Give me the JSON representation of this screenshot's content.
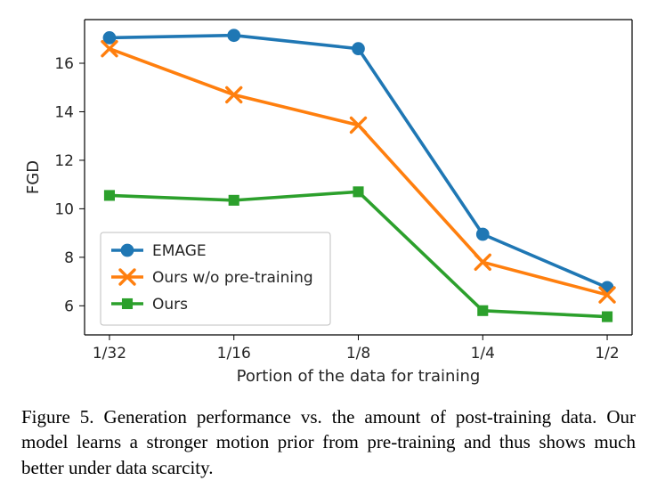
{
  "chart": {
    "type": "line",
    "xlabel": "Portion of the data for training",
    "ylabel": "FGD",
    "label_fontsize": 18,
    "tick_fontsize": 17,
    "x_categories": [
      "1/32",
      "1/16",
      "1/8",
      "1/4",
      "1/2"
    ],
    "x_positions": [
      0,
      1,
      2,
      3,
      4
    ],
    "xlim": [
      -0.2,
      4.2
    ],
    "ylim": [
      4.8,
      17.8
    ],
    "yticks": [
      6,
      8,
      10,
      12,
      14,
      16
    ],
    "background_color": "#ffffff",
    "grid_color": "#ffffff",
    "axis_line_color": "#000000",
    "tick_color": "#000000",
    "series": [
      {
        "name": "EMAGE",
        "label": "EMAGE",
        "color": "#1f77b4",
        "marker": "circle",
        "marker_size": 11,
        "line_width": 3.6,
        "y": [
          17.05,
          17.15,
          16.6,
          8.95,
          6.75
        ]
      },
      {
        "name": "Ours w/o pre-training",
        "label": "Ours w/o pre-training",
        "color": "#ff7f0e",
        "marker": "x",
        "marker_size": 12,
        "line_width": 3.6,
        "y": [
          16.6,
          14.7,
          13.45,
          7.8,
          6.45
        ]
      },
      {
        "name": "Ours",
        "label": "Ours",
        "color": "#2ca02c",
        "marker": "square",
        "marker_size": 10,
        "line_width": 3.6,
        "y": [
          10.55,
          10.35,
          10.7,
          5.8,
          5.55
        ]
      }
    ],
    "legend": {
      "position": "lower-left-inside",
      "border_color": "#bfbfbf",
      "background": "#ffffff",
      "fontsize": 17
    }
  },
  "caption": {
    "prefix": "Figure 5.",
    "text": "Generation performance vs. the amount of post-training data. Our model learns a stronger motion prior from pre-training and thus shows much better under data scarcity.",
    "fontsize": 21
  }
}
